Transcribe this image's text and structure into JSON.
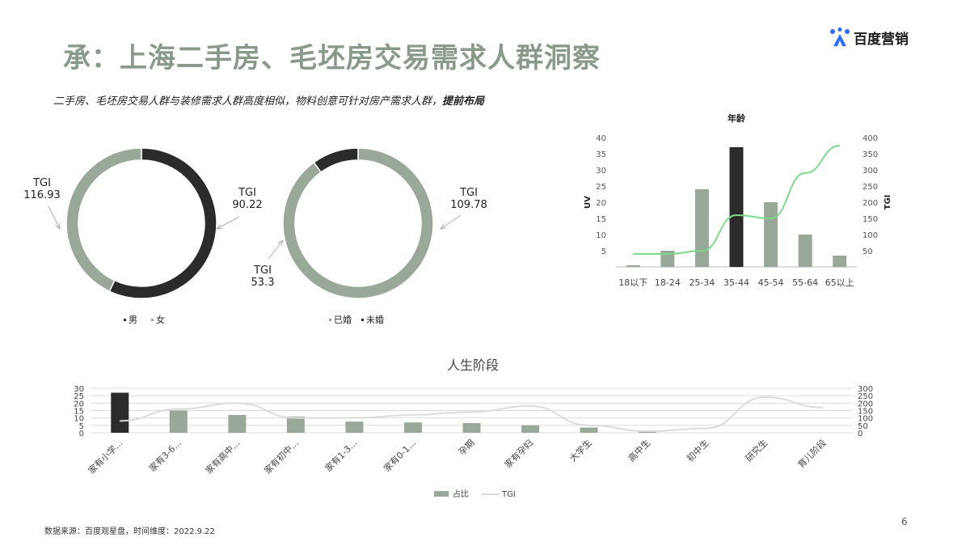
{
  "header": {
    "title": "承：上海二手房、毛坯房交易需求人群洞察",
    "subtitle": "二手房、毛坯房交易人群与装修需求人群高度相似，物料创意可针对房产需求人群，",
    "subtitle_bold": "提前布局",
    "logo_text": "百度营销",
    "logo_icon": "baidu-marketing-icon"
  },
  "footer": {
    "source": "数据来源：百度观星盘，时间维度：2022.9.22",
    "page_number": "6"
  },
  "colors": {
    "dark": "#2b2b2b",
    "sage": "#9aa89a",
    "title_green": "#8a9a8a",
    "line_green": "#7ed88a",
    "line_gray": "#dcdcdc"
  },
  "chart_data": [
    {
      "id": "gender",
      "type": "pie",
      "donut": true,
      "categories": [
        "男",
        "女"
      ],
      "values": [
        57,
        43
      ],
      "colors": [
        "#2b2b2b",
        "#9aa89a"
      ],
      "tgi_labels": [
        {
          "label": "TGI",
          "value": "90.22"
        },
        {
          "label": "TGI",
          "value": "116.93"
        }
      ],
      "legend": "bottom"
    },
    {
      "id": "marital",
      "type": "pie",
      "donut": true,
      "categories": [
        "已婚",
        "未婚"
      ],
      "values": [
        90,
        10
      ],
      "colors": [
        "#9aa89a",
        "#2b2b2b"
      ],
      "tgi_labels": [
        {
          "label": "TGI",
          "value": "109.78"
        },
        {
          "label": "TGI",
          "value": "53.3"
        }
      ],
      "legend": "bottom"
    },
    {
      "id": "age",
      "type": "bar",
      "title": "年龄",
      "categories": [
        "18以下",
        "18-24",
        "25-34",
        "35-44",
        "45-54",
        "55-64",
        "65以上"
      ],
      "series": [
        {
          "kind": "bar",
          "axis": "left",
          "values": [
            0.5,
            5,
            24,
            37,
            20,
            10,
            3.5
          ],
          "highlight_index": 3
        },
        {
          "kind": "line",
          "axis": "right",
          "values": [
            40,
            40,
            50,
            160,
            150,
            290,
            375
          ]
        }
      ],
      "ylabel": "UV",
      "y2label": "TGI",
      "ylim": [
        0,
        40
      ],
      "y2lim": [
        0,
        400
      ],
      "yticks": [
        "5",
        "10",
        "15",
        "20",
        "25",
        "30",
        "35",
        "40"
      ],
      "y2ticks": [
        "50",
        "100",
        "150",
        "200",
        "250",
        "300",
        "350",
        "400"
      ],
      "grid": false
    },
    {
      "id": "life_stage",
      "type": "bar",
      "title": "人生阶段",
      "categories": [
        "家有小学...",
        "家有3-6...",
        "家有高中...",
        "家有初中...",
        "家有1-3...",
        "家有0-1...",
        "孕期",
        "家有孕妇",
        "大学生",
        "高中生",
        "初中生",
        "研究生",
        "育儿阶段"
      ],
      "series": [
        {
          "name": "占比",
          "kind": "bar",
          "axis": "left",
          "values": [
            27,
            15,
            12,
            11,
            7.5,
            7,
            6.5,
            5,
            3.5,
            1.5,
            0,
            0,
            0
          ],
          "highlight_index": 0
        },
        {
          "name": "TGI",
          "kind": "line",
          "axis": "right",
          "values": [
            80,
            160,
            200,
            100,
            100,
            120,
            140,
            180,
            50,
            10,
            30,
            240,
            170
          ]
        }
      ],
      "ylim": [
        0,
        30
      ],
      "y2lim": [
        0,
        300
      ],
      "yticks": [
        "0",
        "5",
        "10",
        "15",
        "20",
        "25",
        "30"
      ],
      "y2ticks": [
        "0",
        "50",
        "100",
        "150",
        "200",
        "250",
        "300"
      ],
      "grid": true,
      "legend": "bottom"
    }
  ]
}
